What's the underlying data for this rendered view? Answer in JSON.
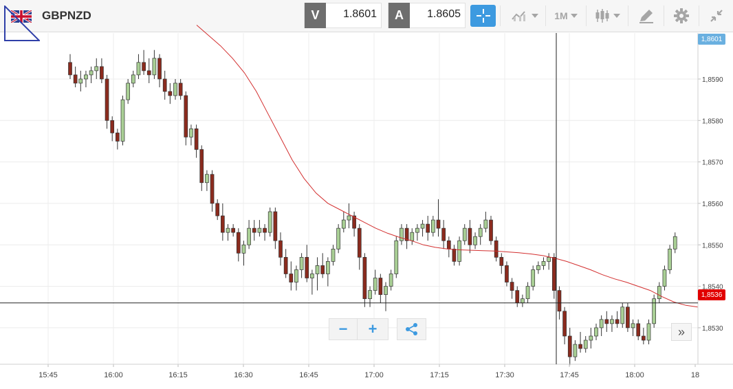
{
  "toolbar": {
    "symbol": "GBPNZD",
    "bid_label": "V",
    "bid_value": "1.8601",
    "ask_label": "A",
    "ask_value": "1.8605",
    "timeframe": "1M",
    "icons": [
      "crosshair-icon",
      "line-chart-icon",
      "candlestick-icon",
      "draw-pencil-icon",
      "gear-icon",
      "collapse-icon"
    ]
  },
  "controls": {
    "zoom_out": "−",
    "zoom_in": "+",
    "scroll_right": "»"
  },
  "tags": {
    "current_price": "1,8601",
    "crosshair_price": "1,8536"
  },
  "colors": {
    "bull": "#a9cf95",
    "bear": "#8b2b1e",
    "ma": "#d32f2f",
    "accent": "#3d9ae0",
    "crosshair_tag": "#e10000",
    "price_tag": "#6ab0e0"
  },
  "chart_data": {
    "type": "candlestick",
    "title": "",
    "ylim": [
      1.85212,
      1.86011
    ],
    "yticks": [
      1.853,
      1.854,
      1.855,
      1.856,
      1.857,
      1.858,
      1.859
    ],
    "ytick_labels": [
      "1,8530",
      "1,8540",
      "1,8550",
      "1,8560",
      "1,8570",
      "1,8580",
      "1,8590"
    ],
    "xticks": [
      "15:45",
      "16:00",
      "16:15",
      "16:30",
      "16:45",
      "17:00",
      "17:15",
      "17:30",
      "17:45",
      "18:00",
      "18"
    ],
    "crosshair": {
      "time": "17:42",
      "price": 1.8536
    },
    "grid": true,
    "ohlc": [
      [
        1.8594,
        1.8596,
        1.859,
        1.8591
      ],
      [
        1.8591,
        1.8593,
        1.8588,
        1.8589
      ],
      [
        1.8589,
        1.8592,
        1.8587,
        1.859
      ],
      [
        1.859,
        1.8592,
        1.8588,
        1.8591
      ],
      [
        1.8591,
        1.8593,
        1.8589,
        1.8592
      ],
      [
        1.8592,
        1.8595,
        1.859,
        1.8593
      ],
      [
        1.8593,
        1.8595,
        1.8589,
        1.859
      ],
      [
        1.859,
        1.8591,
        1.8578,
        1.858
      ],
      [
        1.858,
        1.8581,
        1.8575,
        1.8577
      ],
      [
        1.8577,
        1.8578,
        1.8573,
        1.8575
      ],
      [
        1.8575,
        1.8586,
        1.8574,
        1.8585
      ],
      [
        1.8585,
        1.859,
        1.8584,
        1.8589
      ],
      [
        1.8589,
        1.8592,
        1.8588,
        1.8591
      ],
      [
        1.8591,
        1.8596,
        1.859,
        1.8594
      ],
      [
        1.8594,
        1.8597,
        1.8591,
        1.8592
      ],
      [
        1.8592,
        1.8595,
        1.8589,
        1.8591
      ],
      [
        1.8591,
        1.8597,
        1.859,
        1.8595
      ],
      [
        1.8595,
        1.8596,
        1.8588,
        1.859
      ],
      [
        1.859,
        1.8592,
        1.8585,
        1.8587
      ],
      [
        1.8587,
        1.8589,
        1.8584,
        1.8586
      ],
      [
        1.8586,
        1.859,
        1.8585,
        1.8589
      ],
      [
        1.8589,
        1.859,
        1.8585,
        1.8586
      ],
      [
        1.8586,
        1.8587,
        1.8574,
        1.8576
      ],
      [
        1.8576,
        1.8579,
        1.8574,
        1.8578
      ],
      [
        1.8578,
        1.8579,
        1.8571,
        1.8573
      ],
      [
        1.8573,
        1.8574,
        1.8563,
        1.8565
      ],
      [
        1.8565,
        1.8568,
        1.8563,
        1.8567
      ],
      [
        1.8567,
        1.8568,
        1.8558,
        1.856
      ],
      [
        1.856,
        1.8561,
        1.8556,
        1.8557
      ],
      [
        1.8557,
        1.856,
        1.8551,
        1.8553
      ],
      [
        1.8553,
        1.8555,
        1.8551,
        1.8554
      ],
      [
        1.8554,
        1.8555,
        1.8552,
        1.8553
      ],
      [
        1.8553,
        1.8554,
        1.8546,
        1.8548
      ],
      [
        1.8548,
        1.8551,
        1.8545,
        1.855
      ],
      [
        1.855,
        1.8556,
        1.8549,
        1.8554
      ],
      [
        1.8554,
        1.8556,
        1.8551,
        1.8553
      ],
      [
        1.8553,
        1.8556,
        1.8552,
        1.8554
      ],
      [
        1.8554,
        1.8555,
        1.8551,
        1.8553
      ],
      [
        1.8553,
        1.8559,
        1.8552,
        1.8558
      ],
      [
        1.8558,
        1.8559,
        1.8549,
        1.8551
      ],
      [
        1.8551,
        1.8553,
        1.8545,
        1.8547
      ],
      [
        1.8547,
        1.8549,
        1.8542,
        1.8543
      ],
      [
        1.8543,
        1.8546,
        1.8539,
        1.8541
      ],
      [
        1.8541,
        1.8545,
        1.8539,
        1.8544
      ],
      [
        1.8544,
        1.8548,
        1.8542,
        1.8547
      ],
      [
        1.8547,
        1.855,
        1.8541,
        1.8542
      ],
      [
        1.8542,
        1.8544,
        1.8538,
        1.8543
      ],
      [
        1.8543,
        1.8547,
        1.8539,
        1.8545
      ],
      [
        1.8545,
        1.8548,
        1.8542,
        1.8543
      ],
      [
        1.8543,
        1.8547,
        1.854,
        1.8546
      ],
      [
        1.8546,
        1.855,
        1.8545,
        1.8549
      ],
      [
        1.8549,
        1.8555,
        1.8548,
        1.8554
      ],
      [
        1.8554,
        1.8558,
        1.8553,
        1.8556
      ],
      [
        1.8556,
        1.856,
        1.8554,
        1.8557
      ],
      [
        1.8557,
        1.8558,
        1.8552,
        1.8554
      ],
      [
        1.8554,
        1.8555,
        1.8544,
        1.8547
      ],
      [
        1.8547,
        1.8548,
        1.8535,
        1.8537
      ],
      [
        1.8537,
        1.854,
        1.8535,
        1.8539
      ],
      [
        1.8539,
        1.8544,
        1.8538,
        1.8542
      ],
      [
        1.8542,
        1.8543,
        1.8536,
        1.8538
      ],
      [
        1.8538,
        1.8541,
        1.8534,
        1.854
      ],
      [
        1.854,
        1.8544,
        1.8539,
        1.8543
      ],
      [
        1.8543,
        1.8552,
        1.8542,
        1.8551
      ],
      [
        1.8551,
        1.8555,
        1.855,
        1.8554
      ],
      [
        1.8554,
        1.8555,
        1.8549,
        1.8551
      ],
      [
        1.8551,
        1.8554,
        1.855,
        1.8553
      ],
      [
        1.8553,
        1.8555,
        1.8551,
        1.8554
      ],
      [
        1.8554,
        1.8556,
        1.8552,
        1.8555
      ],
      [
        1.8555,
        1.8557,
        1.8551,
        1.8553
      ],
      [
        1.8553,
        1.8557,
        1.8552,
        1.8556
      ],
      [
        1.8556,
        1.8561,
        1.8552,
        1.8554
      ],
      [
        1.8554,
        1.8556,
        1.8549,
        1.8551
      ],
      [
        1.8551,
        1.8552,
        1.8547,
        1.8549
      ],
      [
        1.8549,
        1.855,
        1.8545,
        1.8546
      ],
      [
        1.8546,
        1.8552,
        1.8545,
        1.8551
      ],
      [
        1.8551,
        1.8555,
        1.855,
        1.8554
      ],
      [
        1.8554,
        1.8556,
        1.8548,
        1.855
      ],
      [
        1.855,
        1.8553,
        1.8549,
        1.8552
      ],
      [
        1.8552,
        1.8555,
        1.855,
        1.8554
      ],
      [
        1.8554,
        1.8558,
        1.8553,
        1.8556
      ],
      [
        1.8556,
        1.8557,
        1.855,
        1.8551
      ],
      [
        1.8551,
        1.8552,
        1.8546,
        1.8547
      ],
      [
        1.8547,
        1.8548,
        1.8543,
        1.8545
      ],
      [
        1.8545,
        1.8546,
        1.854,
        1.8541
      ],
      [
        1.8541,
        1.8542,
        1.8537,
        1.8539
      ],
      [
        1.8539,
        1.854,
        1.8535,
        1.8536
      ],
      [
        1.8536,
        1.8538,
        1.8535,
        1.8537
      ],
      [
        1.8537,
        1.8541,
        1.8536,
        1.854
      ],
      [
        1.854,
        1.8545,
        1.8539,
        1.8544
      ],
      [
        1.8544,
        1.8546,
        1.8543,
        1.8545
      ],
      [
        1.8545,
        1.8547,
        1.8544,
        1.8546
      ],
      [
        1.8546,
        1.8548,
        1.8544,
        1.8547
      ],
      [
        1.8547,
        1.8548,
        1.8537,
        1.8539
      ],
      [
        1.8539,
        1.854,
        1.8532,
        1.8534
      ],
      [
        1.8534,
        1.8535,
        1.8526,
        1.8528
      ],
      [
        1.8528,
        1.853,
        1.8521,
        1.8523
      ],
      [
        1.8523,
        1.8527,
        1.8522,
        1.8526
      ],
      [
        1.8526,
        1.8529,
        1.8524,
        1.8525
      ],
      [
        1.8525,
        1.8528,
        1.8524,
        1.8527
      ],
      [
        1.8527,
        1.853,
        1.8525,
        1.8528
      ],
      [
        1.8528,
        1.8531,
        1.8527,
        1.853
      ],
      [
        1.853,
        1.8533,
        1.8528,
        1.8532
      ],
      [
        1.8532,
        1.8534,
        1.8529,
        1.8531
      ],
      [
        1.8531,
        1.8533,
        1.8529,
        1.8532
      ],
      [
        1.8532,
        1.8534,
        1.853,
        1.8531
      ],
      [
        1.8531,
        1.8536,
        1.853,
        1.8535
      ],
      [
        1.8535,
        1.8536,
        1.8529,
        1.853
      ],
      [
        1.853,
        1.8532,
        1.8528,
        1.8531
      ],
      [
        1.8531,
        1.8532,
        1.8527,
        1.8528
      ],
      [
        1.8528,
        1.853,
        1.8526,
        1.8527
      ],
      [
        1.8527,
        1.8532,
        1.8526,
        1.8531
      ],
      [
        1.8531,
        1.8538,
        1.853,
        1.8537
      ],
      [
        1.8537,
        1.8541,
        1.8536,
        1.854
      ],
      [
        1.854,
        1.8545,
        1.8539,
        1.8544
      ],
      [
        1.8544,
        1.855,
        1.8543,
        1.8549
      ],
      [
        1.8549,
        1.8553,
        1.8548,
        1.8552
      ]
    ],
    "ma": [
      1.8603,
      1.86005,
      1.8598,
      1.8595,
      1.85915,
      1.8587,
      1.85815,
      1.8576,
      1.85705,
      1.8566,
      1.85625,
      1.856,
      1.85585,
      1.8557,
      1.85555,
      1.8554,
      1.85528,
      1.85518,
      1.8551,
      1.855,
      1.85494,
      1.8549,
      1.85488,
      1.85487,
      1.85486,
      1.85485,
      1.85483,
      1.85481,
      1.85478,
      1.85474,
      1.85468,
      1.8546,
      1.8545,
      1.8544,
      1.85428,
      1.85418,
      1.8541,
      1.854,
      1.8539,
      1.85375,
      1.85362,
      1.85354,
      1.8535
    ]
  }
}
